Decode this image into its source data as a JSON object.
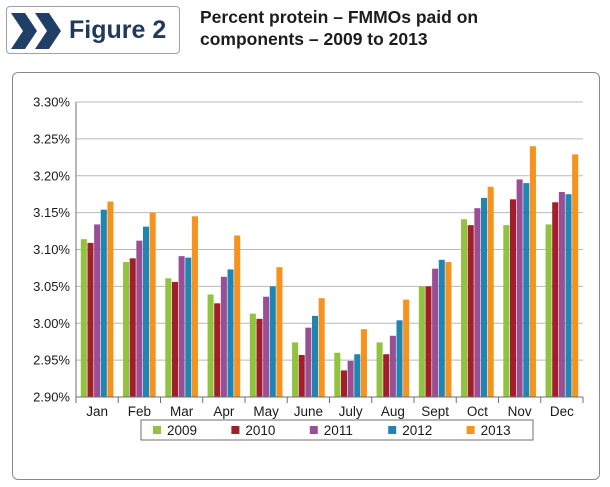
{
  "figure_label": "Figure 2",
  "title_lines": [
    "Percent protein – FMMOs paid on",
    "components – 2009 to 2013"
  ],
  "colors": {
    "2009": "#92c33e",
    "2010": "#a11f2b",
    "2011": "#9a4f95",
    "2012": "#1f86b3",
    "2013": "#f6921e",
    "chevron": "#1f3f66",
    "accent_border": "#9aa3ad"
  },
  "chart_data": {
    "type": "bar",
    "title": "Percent protein – FMMOs paid on components – 2009 to 2013",
    "xlabel": "",
    "ylabel": "",
    "ylim": [
      2.9,
      3.3
    ],
    "yticks": [
      "3.30%",
      "3.25%",
      "3.20%",
      "3.15%",
      "3.10%",
      "3.05%",
      "3.00%",
      "2.95%",
      "2.90%"
    ],
    "ytick_values": [
      3.3,
      3.25,
      3.2,
      3.15,
      3.1,
      3.05,
      3.0,
      2.95,
      2.9
    ],
    "grid": true,
    "legend_position": "bottom",
    "categories": [
      "Jan",
      "Feb",
      "Mar",
      "Apr",
      "May",
      "June",
      "July",
      "Aug",
      "Sept",
      "Oct",
      "Nov",
      "Dec"
    ],
    "series": [
      {
        "name": "2009",
        "color": "#92c33e",
        "values": [
          3.114,
          3.083,
          3.061,
          3.039,
          3.013,
          2.974,
          2.96,
          2.974,
          3.05,
          3.141,
          3.133,
          3.134
        ]
      },
      {
        "name": "2010",
        "color": "#a11f2b",
        "values": [
          3.109,
          3.088,
          3.056,
          3.027,
          3.006,
          2.957,
          2.936,
          2.958,
          3.05,
          3.133,
          3.168,
          3.164
        ]
      },
      {
        "name": "2011",
        "color": "#9a4f95",
        "values": [
          3.134,
          3.112,
          3.091,
          3.063,
          3.036,
          2.994,
          2.949,
          2.983,
          3.074,
          3.156,
          3.195,
          3.178
        ]
      },
      {
        "name": "2012",
        "color": "#1f86b3",
        "values": [
          3.154,
          3.131,
          3.089,
          3.073,
          3.05,
          3.01,
          2.958,
          3.004,
          3.086,
          3.17,
          3.19,
          3.175
        ]
      },
      {
        "name": "2013",
        "color": "#f6921e",
        "values": [
          3.165,
          3.15,
          3.145,
          3.119,
          3.076,
          3.034,
          2.992,
          3.032,
          3.083,
          3.185,
          3.24,
          3.229
        ]
      }
    ]
  }
}
